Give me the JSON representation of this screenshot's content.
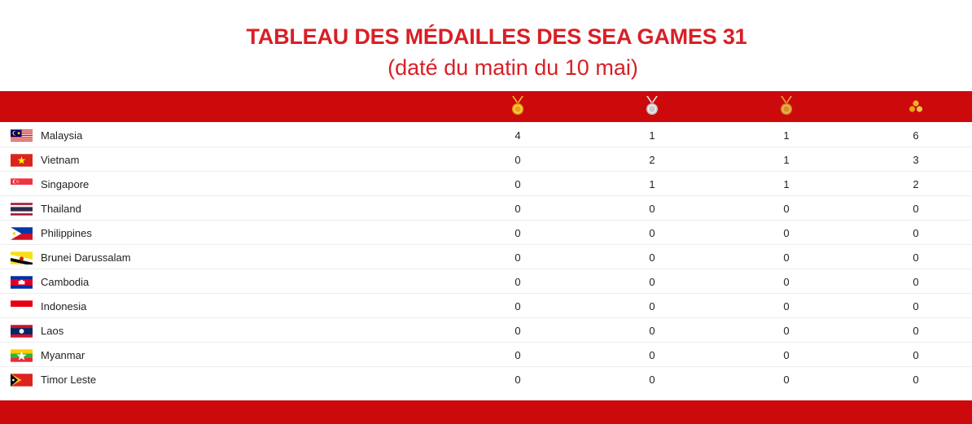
{
  "title": "TABLEAU DES MÉDAILLES DES SEA GAMES 31",
  "subtitle": "(daté du matin du 10 mai)",
  "header": {
    "icons": [
      "gold-medal-icon",
      "silver-medal-icon",
      "bronze-medal-icon",
      "total-medals-icon"
    ]
  },
  "colors": {
    "brand_red": "#cc0a0c",
    "title_red": "#d81f26",
    "gold": "#e7a313",
    "silver": "#c9c9c9"
  },
  "rows": [
    {
      "country": "Malaysia",
      "flag": "malaysia-flag-icon",
      "gold": "4",
      "silver": "1",
      "bronze": "1",
      "total": "6"
    },
    {
      "country": "Vietnam",
      "flag": "vietnam-flag-icon",
      "gold": "0",
      "silver": "2",
      "bronze": "1",
      "total": "3"
    },
    {
      "country": "Singapore",
      "flag": "singapore-flag-icon",
      "gold": "0",
      "silver": "1",
      "bronze": "1",
      "total": "2"
    },
    {
      "country": "Thailand",
      "flag": "thailand-flag-icon",
      "gold": "0",
      "silver": "0",
      "bronze": "0",
      "total": "0"
    },
    {
      "country": "Philippines",
      "flag": "philippines-flag-icon",
      "gold": "0",
      "silver": "0",
      "bronze": "0",
      "total": "0"
    },
    {
      "country": "Brunei Darussalam",
      "flag": "brunei-flag-icon",
      "gold": "0",
      "silver": "0",
      "bronze": "0",
      "total": "0"
    },
    {
      "country": "Cambodia",
      "flag": "cambodia-flag-icon",
      "gold": "0",
      "silver": "0",
      "bronze": "0",
      "total": "0"
    },
    {
      "country": "Indonesia",
      "flag": "indonesia-flag-icon",
      "gold": "0",
      "silver": "0",
      "bronze": "0",
      "total": "0"
    },
    {
      "country": "Laos",
      "flag": "laos-flag-icon",
      "gold": "0",
      "silver": "0",
      "bronze": "0",
      "total": "0"
    },
    {
      "country": "Myanmar",
      "flag": "myanmar-flag-icon",
      "gold": "0",
      "silver": "0",
      "bronze": "0",
      "total": "0"
    },
    {
      "country": "Timor Leste",
      "flag": "timor-leste-flag-icon",
      "gold": "0",
      "silver": "0",
      "bronze": "0",
      "total": "0"
    }
  ]
}
